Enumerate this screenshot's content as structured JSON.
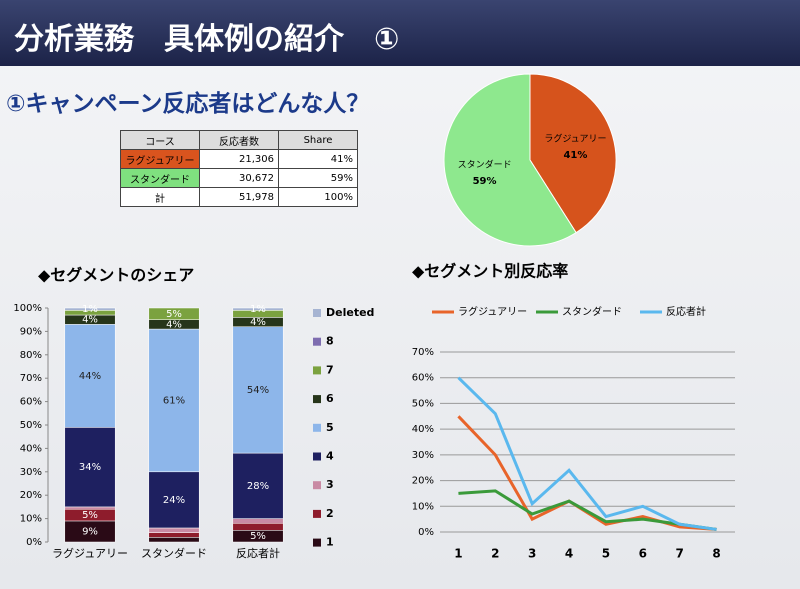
{
  "header": {
    "title": "分析業務　具体例の紹介　①",
    "subtitle": "①キャンペーン反応者はどんな人？"
  },
  "table": {
    "columns": [
      "コース",
      "反応者数",
      "Share"
    ],
    "rows": [
      [
        "ラグジュアリー",
        "21,306",
        "41%"
      ],
      [
        "スタンダード",
        "30,672",
        "59%"
      ],
      [
        "計",
        "51,978",
        "100%"
      ]
    ],
    "row_colors": [
      "#d9541e",
      "#7fe07f",
      null
    ]
  },
  "chart_data": [
    {
      "type": "pie",
      "categories": [
        "ラグジュアリー",
        "スタンダード"
      ],
      "values": [
        41,
        59
      ],
      "value_labels": [
        "41%",
        "59%"
      ],
      "colors": [
        "#d6531c",
        "#8ee88e"
      ]
    },
    {
      "type": "bar",
      "stacked": true,
      "title": "◆セグメントのシェア",
      "categories": [
        "ラグジュアリー",
        "スタンダード",
        "反応者計"
      ],
      "series": [
        {
          "name": "1",
          "color": "#2a0a16",
          "values": [
            9,
            2,
            5
          ],
          "value_labels": [
            "9%",
            null,
            "5%"
          ]
        },
        {
          "name": "2",
          "color": "#8e1c2c",
          "values": [
            5,
            2,
            3
          ],
          "value_labels": [
            "5%",
            null,
            null
          ]
        },
        {
          "name": "3",
          "color": "#c98aa4",
          "values": [
            1,
            2,
            2
          ],
          "value_labels": [
            null,
            null,
            null
          ]
        },
        {
          "name": "4",
          "color": "#1e2060",
          "values": [
            34,
            24,
            28
          ],
          "value_labels": [
            "34%",
            "24%",
            "28%"
          ]
        },
        {
          "name": "5",
          "color": "#8db6ea",
          "values": [
            44,
            61,
            54
          ],
          "value_labels": [
            "44%",
            "61%",
            "54%"
          ]
        },
        {
          "name": "6",
          "color": "#26351a",
          "values": [
            4,
            4,
            4
          ],
          "value_labels": [
            "4%",
            "4%",
            "4%"
          ]
        },
        {
          "name": "7",
          "color": "#7ba23f",
          "values": [
            2,
            5,
            3
          ],
          "value_labels": [
            null,
            "5%",
            null
          ]
        },
        {
          "name": "8",
          "color": "#7e6db0",
          "values": [
            0,
            0,
            0
          ],
          "value_labels": [
            null,
            null,
            null
          ]
        },
        {
          "name": "Deleted",
          "color": "#a6b4d2",
          "values": [
            1,
            0,
            1
          ],
          "value_labels": [
            "1%",
            null,
            "1%"
          ]
        }
      ],
      "ylim": [
        0,
        100
      ],
      "yticks": [
        {
          "value": 0,
          "label": "0%"
        },
        {
          "value": 10,
          "label": "10%"
        },
        {
          "value": 20,
          "label": "20%"
        },
        {
          "value": 30,
          "label": "30%"
        },
        {
          "value": 40,
          "label": "40%"
        },
        {
          "value": 50,
          "label": "50%"
        },
        {
          "value": 60,
          "label": "60%"
        },
        {
          "value": 70,
          "label": "70%"
        },
        {
          "value": 80,
          "label": "80%"
        },
        {
          "value": 90,
          "label": "90%"
        },
        {
          "value": 100,
          "label": "100%"
        }
      ]
    },
    {
      "type": "line",
      "title": "◆セグメント別反応率",
      "categories": [
        "1",
        "2",
        "3",
        "4",
        "5",
        "6",
        "7",
        "8"
      ],
      "series": [
        {
          "name": "ラグジュアリー",
          "color": "#e8642a",
          "values": [
            45,
            30,
            5,
            12,
            3,
            6,
            2,
            1
          ]
        },
        {
          "name": "スタンダード",
          "color": "#3a9a3a",
          "values": [
            15,
            16,
            7,
            12,
            4,
            5,
            3,
            1
          ]
        },
        {
          "name": "反応者計",
          "color": "#5ab8ee",
          "values": [
            60,
            46,
            11,
            24,
            6,
            10,
            3,
            1
          ]
        }
      ],
      "ylim": [
        0,
        70
      ],
      "yticks": [
        {
          "value": 0,
          "label": "0%"
        },
        {
          "value": 10,
          "label": "10%"
        },
        {
          "value": 20,
          "label": "20%"
        },
        {
          "value": 30,
          "label": "30%"
        },
        {
          "value": 40,
          "label": "40%"
        },
        {
          "value": 50,
          "label": "50%"
        },
        {
          "value": 60,
          "label": "60%"
        },
        {
          "value": 70,
          "label": "70%"
        }
      ],
      "grid": true,
      "legend": "top"
    }
  ]
}
